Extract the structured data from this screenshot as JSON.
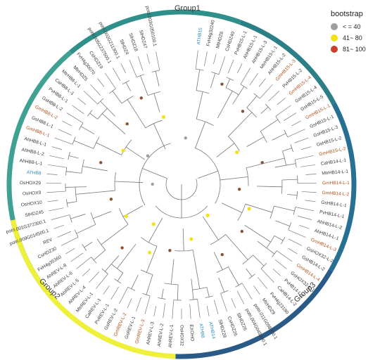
{
  "legend": {
    "title": "bootstrap",
    "items": [
      {
        "label": "< = 40",
        "color": "#9e9e9e"
      },
      {
        "label": "41~ 80",
        "color": "#f2e21a"
      },
      {
        "label": "81~ 100",
        "color": "#c9402f"
      }
    ]
  },
  "groups": [
    {
      "label": "Group1",
      "color_from": "#3e9a8a",
      "color_to": "#2f7f86",
      "a_start": -130,
      "a_end": 60
    },
    {
      "label": "Group3",
      "color_from": "#2a6aa0",
      "color_to": "#2b5782",
      "a_start": 60,
      "a_end": 180
    },
    {
      "label": "Group2",
      "color_from": "#e9f03a",
      "color_to": "#f1ee30",
      "a_start": 180,
      "a_end": 230
    }
  ],
  "colors": {
    "default": "#3a3a3a",
    "gm": "#b0521c",
    "at": "#2b8fc2",
    "branch": "#6f6f6f",
    "node": "#8a5a3a"
  },
  "leaves": [
    {
      "text": "ATHB15",
      "cls": "at"
    },
    {
      "text": "FvH4g32240",
      "cls": "default"
    },
    {
      "text": "MtHDZ8",
      "cls": "default"
    },
    {
      "text": "CsHDZ40",
      "cls": "default"
    },
    {
      "text": "PvHB15-L-1",
      "cls": "default"
    },
    {
      "text": "AhHB15-L-1",
      "cls": "default"
    },
    {
      "text": "AhHB15-L-3",
      "cls": "default"
    },
    {
      "text": "MtrHB15-L-1",
      "cls": "default"
    },
    {
      "text": "AhHB15-L-2",
      "cls": "default"
    },
    {
      "text": "GmHB15-L-3",
      "cls": "gm"
    },
    {
      "text": "PvHB15-L-2",
      "cls": "default"
    },
    {
      "text": "GmHB15-L-4",
      "cls": "gm"
    },
    {
      "text": "GsHB15-L-4",
      "cls": "default"
    },
    {
      "text": "GsHB15-L-5",
      "cls": "default"
    },
    {
      "text": "GmHB15-L-1",
      "cls": "gm"
    },
    {
      "text": "GsHB15-L-1",
      "cls": "default"
    },
    {
      "text": "GsHB15-L-3",
      "cls": "default"
    },
    {
      "text": "GsHB15-L-2",
      "cls": "default"
    },
    {
      "text": "GmHB15-L-2",
      "cls": "gm"
    },
    {
      "text": "CaHB14-L-1",
      "cls": "default"
    },
    {
      "text": "MtrHB14-L-1",
      "cls": "default"
    },
    {
      "text": "GmHB14-L-1",
      "cls": "gm"
    },
    {
      "text": "GmHB14-L-2",
      "cls": "gm"
    },
    {
      "text": "GsHB14-L-1",
      "cls": "default"
    },
    {
      "text": "PvHB14-L-1",
      "cls": "default"
    },
    {
      "text": "AhHB14-L-2",
      "cls": "default"
    },
    {
      "text": "AhHB14-L-1",
      "cls": "default"
    },
    {
      "text": "GmHB14-L-3",
      "cls": "gm"
    },
    {
      "text": "GsHOX32-L-2",
      "cls": "default"
    },
    {
      "text": "GsHB14-L-2",
      "cls": "default"
    },
    {
      "text": "GmHB14-L-4",
      "cls": "gm"
    },
    {
      "text": "GsHOX32-L-1",
      "cls": "default"
    },
    {
      "text": "PvHB14-L-2",
      "cls": "default"
    },
    {
      "text": "CaHB14-L-2",
      "cls": "default"
    },
    {
      "text": "FvH4g23190",
      "cls": "default"
    },
    {
      "text": "MtrHDZ9",
      "cls": "default"
    },
    {
      "text": "potri.011G098300.1",
      "cls": "default"
    },
    {
      "text": "potri.004G045100.1",
      "cls": "default"
    },
    {
      "text": "SlHDZ26",
      "cls": "default"
    },
    {
      "text": "CsHDZ26",
      "cls": "default"
    },
    {
      "text": "SlHDZ28",
      "cls": "default"
    },
    {
      "text": "ATHB14",
      "cls": "at"
    },
    {
      "text": "ATHB8",
      "cls": "at"
    },
    {
      "text": "EXOHO",
      "cls": "default"
    },
    {
      "text": "OsHOX32",
      "cls": "default"
    },
    {
      "text": "AhREV-L-1",
      "cls": "default"
    },
    {
      "text": "AhREV-L-2",
      "cls": "default"
    },
    {
      "text": "AhREV-L-3",
      "cls": "default"
    },
    {
      "text": "GmREV-L-3",
      "cls": "gm"
    },
    {
      "text": "GsREV-L-1",
      "cls": "default"
    },
    {
      "text": "GmREV-L-2",
      "cls": "gm"
    },
    {
      "text": "GsREV-L-2",
      "cls": "default"
    },
    {
      "text": "PvREV-L-1",
      "cls": "default"
    },
    {
      "text": "CaREV-L-1",
      "cls": "default"
    },
    {
      "text": "MtrREV-L-1",
      "cls": "default"
    },
    {
      "text": "AhREV-L-4",
      "cls": "default"
    },
    {
      "text": "AhREV-L-5",
      "cls": "default"
    },
    {
      "text": "AhREV-L-6",
      "cls": "default"
    },
    {
      "text": "AhREV-L-8",
      "cls": "default"
    },
    {
      "text": "FvH4g35360",
      "cls": "default"
    },
    {
      "text": "CsHDZ30",
      "cls": "default"
    },
    {
      "text": "REV",
      "cls": "default"
    },
    {
      "text": "potri.009G014500.1",
      "cls": "default"
    },
    {
      "text": "potri.001G372300.1",
      "cls": "default"
    },
    {
      "text": "SlHDZ45",
      "cls": "default"
    },
    {
      "text": "OsHOX10",
      "cls": "default"
    },
    {
      "text": "OsHOX9",
      "cls": "default"
    },
    {
      "text": "OsHOX29",
      "cls": "default"
    },
    {
      "text": "ATHB8",
      "cls": "at"
    },
    {
      "text": "AhHB8-L-1",
      "cls": "default"
    },
    {
      "text": "AhHB8-L-2",
      "cls": "default"
    },
    {
      "text": "AhHB8-L-1",
      "cls": "default"
    },
    {
      "text": "GmHB8-L-1",
      "cls": "gm"
    },
    {
      "text": "GsHB8-L-1",
      "cls": "default"
    },
    {
      "text": "GmHB8-L-2",
      "cls": "gm"
    },
    {
      "text": "GsHB8-L-2",
      "cls": "default"
    },
    {
      "text": "PvHB8-L-1",
      "cls": "default"
    },
    {
      "text": "CaHB8-L-1",
      "cls": "default"
    },
    {
      "text": "MtrHB8-L-1",
      "cls": "default"
    },
    {
      "text": "MtrHDZ5",
      "cls": "default"
    },
    {
      "text": "FvH4g30070",
      "cls": "default"
    },
    {
      "text": "CsHDZ19",
      "cls": "default"
    },
    {
      "text": "potri.005G237500.1",
      "cls": "default"
    },
    {
      "text": "potri.002G211300.1",
      "cls": "default"
    },
    {
      "text": "SlHDZ4",
      "cls": "default"
    },
    {
      "text": "SlHDZ18",
      "cls": "default"
    },
    {
      "text": "SlHDZ47",
      "cls": "default"
    },
    {
      "text": "potri.003G050100.1",
      "cls": "default"
    }
  ],
  "nodes": [
    {
      "a": 22,
      "r": 0.93,
      "b": "red"
    },
    {
      "a": 60,
      "r": 0.55,
      "b": "yellow"
    },
    {
      "a": 75,
      "r": 0.72,
      "b": "red"
    },
    {
      "a": 95,
      "r": 0.5,
      "b": "red"
    },
    {
      "a": 110,
      "r": 0.62,
      "b": "yellow"
    },
    {
      "a": 128,
      "r": 0.66,
      "b": "red"
    },
    {
      "a": 150,
      "r": 0.7,
      "b": "red"
    },
    {
      "a": 170,
      "r": 0.48,
      "b": "yellow"
    },
    {
      "a": 190,
      "r": 0.58,
      "b": "red"
    },
    {
      "a": 205,
      "r": 0.65,
      "b": "yellow"
    },
    {
      "a": 223,
      "r": 0.75,
      "b": "red"
    },
    {
      "a": 240,
      "r": 0.55,
      "b": "yellow"
    },
    {
      "a": 258,
      "r": 0.62,
      "b": "red"
    },
    {
      "a": 270,
      "r": 0.25,
      "b": "grey"
    },
    {
      "a": 285,
      "r": 0.72,
      "b": "red"
    },
    {
      "a": 300,
      "r": 0.58,
      "b": "yellow"
    },
    {
      "a": 318,
      "r": 0.7,
      "b": "red"
    },
    {
      "a": 335,
      "r": 0.82,
      "b": "red"
    },
    {
      "a": 5,
      "r": 0.4,
      "b": "grey"
    },
    {
      "a": 40,
      "r": 0.82,
      "b": "red"
    },
    {
      "a": 140,
      "r": 0.35,
      "b": "yellow"
    },
    {
      "a": 215,
      "r": 0.42,
      "b": "yellow"
    },
    {
      "a": 310,
      "r": 0.38,
      "b": "grey"
    },
    {
      "a": 345,
      "r": 0.6,
      "b": "yellow"
    }
  ]
}
